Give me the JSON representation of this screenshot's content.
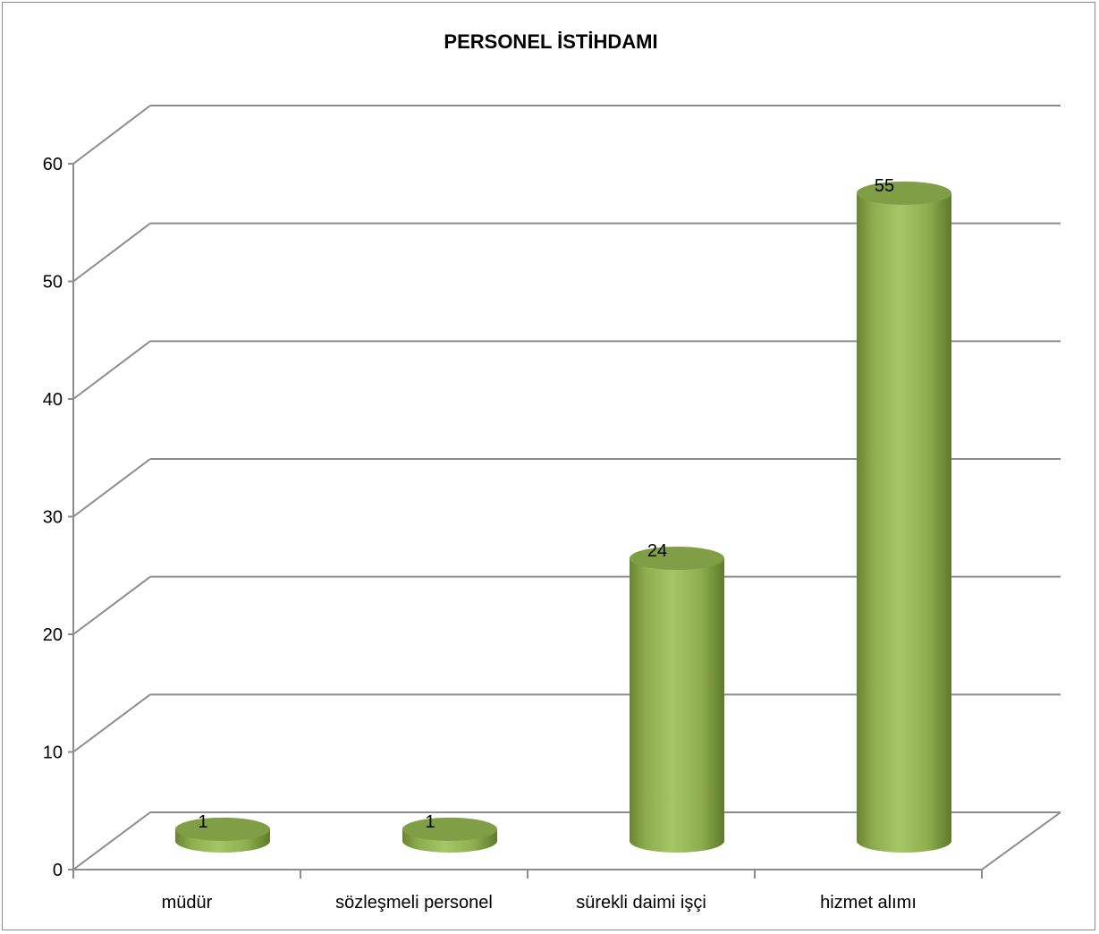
{
  "chart_data": {
    "type": "bar",
    "title": "PERSONEL İSTİHDAMI",
    "categories": [
      "müdür",
      "sözleşmeli personel",
      "sürekli daimi işçi",
      "hizmet alımı"
    ],
    "values": [
      1,
      1,
      24,
      55
    ],
    "data_labels": [
      "1",
      "1",
      "24",
      "55"
    ],
    "y_ticks": [
      "0",
      "10",
      "20",
      "30",
      "40",
      "50",
      "60"
    ],
    "ylim": [
      0,
      60
    ],
    "grid": true,
    "legend": "none",
    "style": "3d-cylinder",
    "colors": {
      "bar": "#9bbb59",
      "bar_dark": "#6f8a36",
      "bar_top": "#7f9e45",
      "grid": "#8c8c8c"
    }
  }
}
